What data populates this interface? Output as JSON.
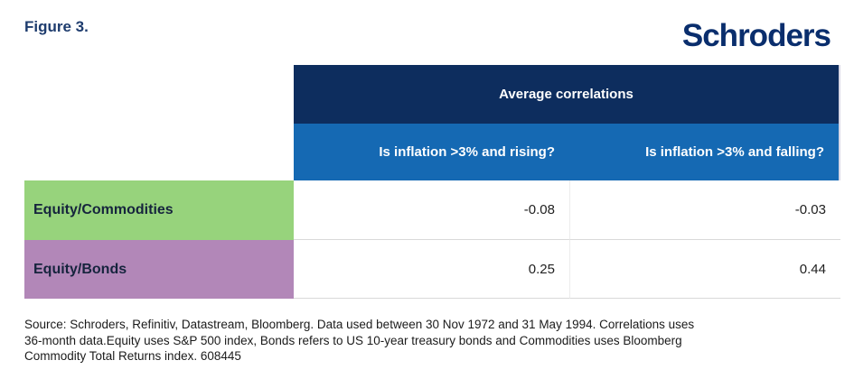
{
  "figure_label": "Figure 3.",
  "brand": {
    "logo_text": "Schroders"
  },
  "colors": {
    "header_navy": "#0d2d5e",
    "header_blue": "#1569b3",
    "row_green": "#97d37c",
    "row_purple": "#b287b8",
    "brand_navy": "#0a2e6d"
  },
  "chart_data": {
    "type": "table",
    "title": "Average correlations",
    "columns": [
      "Is inflation >3% and rising?",
      "Is inflation >3% and falling?"
    ],
    "rows": [
      {
        "label": "Equity/Commodities",
        "values": [
          "-0.08",
          "-0.03"
        ]
      },
      {
        "label": "Equity/Bonds",
        "values": [
          "0.25",
          "0.44"
        ]
      }
    ]
  },
  "source_lines": [
    "Source: Schroders, Refinitiv, Datastream, Bloomberg. Data used between 30 Nov 1972 and 31 May 1994. Correlations uses",
    "36-month data.Equity uses S&P 500 index, Bonds refers to US 10-year treasury bonds and Commodities uses Bloomberg",
    "Commodity Total Returns index. 608445"
  ]
}
